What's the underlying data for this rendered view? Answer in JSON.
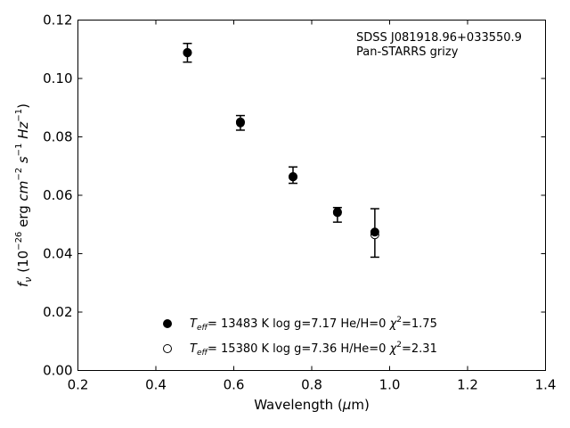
{
  "chart_data": {
    "type": "scatter",
    "xlabel_prefix": "Wavelength (",
    "xlabel_mu": "μ",
    "xlabel_suffix": "m)",
    "ylabel": {
      "f": "f",
      "nu": "ν",
      "open": " (10",
      "exp1": "−26",
      "erg": " erg ",
      "cm": "cm",
      "exp2": "−2",
      "s": " s",
      "exp3": "−1",
      "hz": " Hz",
      "exp4": "−1",
      "close": ")"
    },
    "xlim": [
      0.2,
      1.4
    ],
    "ylim": [
      0.0,
      0.12
    ],
    "xticks": [
      "0.2",
      "0.4",
      "0.6",
      "0.8",
      "1.0",
      "1.2",
      "1.4"
    ],
    "yticks": [
      "0.00",
      "0.02",
      "0.04",
      "0.06",
      "0.08",
      "0.10",
      "0.12"
    ],
    "annotation": [
      "SDSS J081918.96+033550.9",
      "Pan-STARRS grizy"
    ],
    "observed": {
      "x": [
        0.481,
        0.617,
        0.752,
        0.866,
        0.962
      ],
      "y": [
        0.1088,
        0.0848,
        0.0669,
        0.0533,
        0.0471
      ],
      "yerr": [
        0.0032,
        0.0025,
        0.0028,
        0.0025,
        0.0083
      ]
    },
    "series": [
      {
        "marker": "filled",
        "x": [
          0.481,
          0.617,
          0.752,
          0.866,
          0.962
        ],
        "y": [
          0.1089,
          0.0848,
          0.0663,
          0.0543,
          0.0474
        ],
        "legend": {
          "T": "T",
          "sub": "eff",
          "rest": "= 13483 K  log g=7.17  He/H=0  ",
          "chi": "χ",
          "sup": "2",
          "chival": "=1.75"
        }
      },
      {
        "marker": "open",
        "x": [
          0.481,
          0.617,
          0.752,
          0.866,
          0.962
        ],
        "y": [
          0.1088,
          0.0851,
          0.0664,
          0.0541,
          0.0465
        ],
        "legend": {
          "T": "T",
          "sub": "eff",
          "rest": "= 15380 K  log g=7.36  H/He=0  ",
          "chi": "χ",
          "sup": "2",
          "chival": "=2.31"
        }
      }
    ],
    "legend_placement": "lower-center",
    "grid": false
  }
}
